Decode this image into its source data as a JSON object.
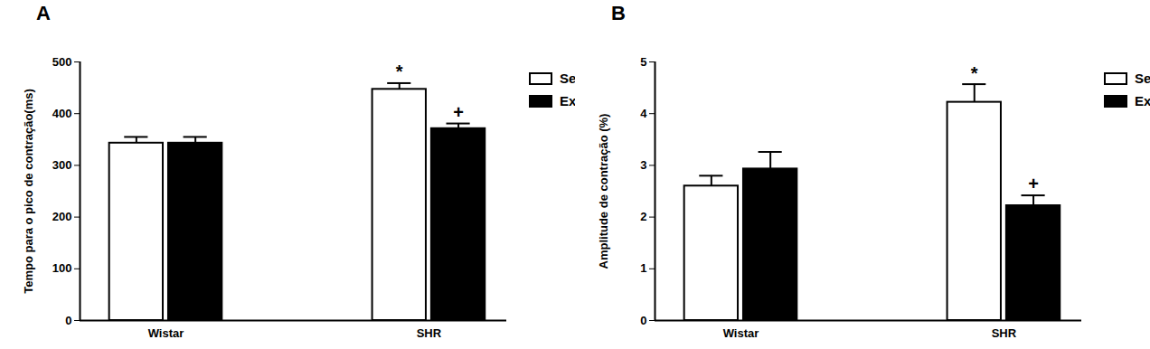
{
  "chart_data": [
    {
      "type": "bar",
      "title": "A",
      "categories": [
        "Wistar",
        "SHR"
      ],
      "series": [
        {
          "name": "Sed",
          "color": "#ffffff",
          "values": [
            343,
            447
          ],
          "errors": [
            12,
            12
          ]
        },
        {
          "name": "Ex",
          "color": "#000000",
          "values": [
            343,
            371
          ],
          "errors": [
            12,
            10
          ]
        }
      ],
      "y_label": "Tempo para o pico de contração(ms)",
      "ylim": [
        0,
        500
      ],
      "yticks": [
        0,
        100,
        200,
        300,
        400,
        500
      ],
      "annotations": [
        {
          "category": "SHR",
          "series": "Sed",
          "text": "*"
        },
        {
          "category": "SHR",
          "series": "Ex",
          "text": "+"
        }
      ],
      "legend": "right"
    },
    {
      "type": "bar",
      "title": "B",
      "categories": [
        "Wistar",
        "SHR"
      ],
      "series": [
        {
          "name": "Sed",
          "color": "#ffffff",
          "values": [
            2.6,
            4.22
          ],
          "errors": [
            0.2,
            0.35
          ]
        },
        {
          "name": "Ex",
          "color": "#000000",
          "values": [
            2.93,
            2.22
          ],
          "errors": [
            0.33,
            0.2
          ]
        }
      ],
      "y_label": "Amplitude de contração (%)",
      "ylim": [
        0,
        5
      ],
      "yticks": [
        0,
        1,
        2,
        3,
        4,
        5
      ],
      "annotations": [
        {
          "category": "SHR",
          "series": "Sed",
          "text": "*"
        },
        {
          "category": "SHR",
          "series": "Ex",
          "text": "+"
        }
      ],
      "legend": "right"
    }
  ]
}
